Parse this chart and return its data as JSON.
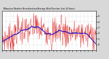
{
  "title": "Milwaukee Weather Normalized and Average Wind Direction (Last 24 Hours)",
  "bg_color": "#d8d8d8",
  "plot_bg": "#ffffff",
  "red_color": "#dd0000",
  "blue_color": "#0000cc",
  "ylim": [
    -1.0,
    6.0
  ],
  "n_points": 288,
  "grid_color": "#999999",
  "axis_color": "#000000",
  "figsize": [
    1.6,
    0.87
  ],
  "dpi": 100
}
